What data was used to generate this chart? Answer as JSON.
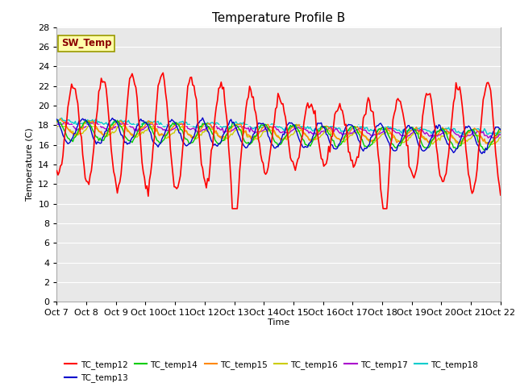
{
  "title": "Temperature Profile B",
  "xlabel": "Time",
  "ylabel": "Temperature (C)",
  "ylim": [
    0,
    28
  ],
  "yticks": [
    0,
    2,
    4,
    6,
    8,
    10,
    12,
    14,
    16,
    18,
    20,
    22,
    24,
    26,
    28
  ],
  "x_labels": [
    "Oct 7",
    "Oct 8",
    "Oct 9",
    "Oct 10",
    "Oct 11",
    "Oct 12",
    "Oct 13",
    "Oct 14",
    "Oct 15",
    "Oct 16",
    "Oct 17",
    "Oct 18",
    "Oct 19",
    "Oct 20",
    "Oct 21",
    "Oct 22"
  ],
  "sw_temp_label": "SW_Temp",
  "legend_entries": [
    "TC_temp12",
    "TC_temp13",
    "TC_temp14",
    "TC_temp15",
    "TC_temp16",
    "TC_temp17",
    "TC_temp18"
  ],
  "line_colors": [
    "#ff0000",
    "#0000cc",
    "#00cc00",
    "#ff8800",
    "#cccc00",
    "#aa00cc",
    "#00cccc"
  ],
  "bg_color": "#e8e8e8",
  "title_fontsize": 11,
  "axis_label_fontsize": 8,
  "tick_fontsize": 8
}
